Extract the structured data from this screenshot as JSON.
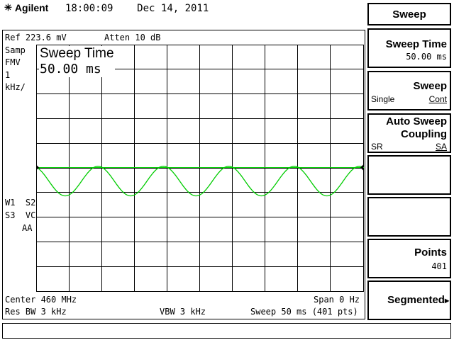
{
  "header": {
    "logo_text": "Agilent",
    "logo_icon": "agilent-spark-icon",
    "time": "18:00:09",
    "date": "Dec 14, 2011"
  },
  "display": {
    "ref_level": "Ref 223.6 mV",
    "atten": "Atten 10 dB",
    "left_labels": [
      "Samp",
      "FMV",
      "1",
      "kHz/"
    ],
    "left_labels_lower": [
      "W1  S2",
      "S3  VC",
      "AA"
    ],
    "active_function_name": "Sweep Time",
    "active_function_value": "50.00 ms",
    "center_freq": "Center 460 MHz",
    "span": "Span 0 Hz",
    "res_bw": "Res BW 3 kHz",
    "vbw": "VBW 3 kHz",
    "sweep": "Sweep 50 ms (401 pts)",
    "grid_color": "#000000",
    "trace_color": "#00cc00",
    "trace_cycles": 5,
    "trace_amplitude_div": 0.6
  },
  "softkeys": {
    "menu_title": "Sweep",
    "sweep_time_label": "Sweep Time",
    "sweep_time_value": "50.00 ms",
    "sweep_label": "Sweep",
    "sweep_single": "Single",
    "sweep_cont": "Cont",
    "auto_sweep_line1": "Auto Sweep",
    "auto_sweep_line2": "Coupling",
    "coupling_sr": "SR",
    "coupling_sa": "SA",
    "points_label": "Points",
    "points_value": "401",
    "segmented_label": "Segmented",
    "segmented_arrow": "▸"
  },
  "status_bar": {
    "text": ""
  }
}
